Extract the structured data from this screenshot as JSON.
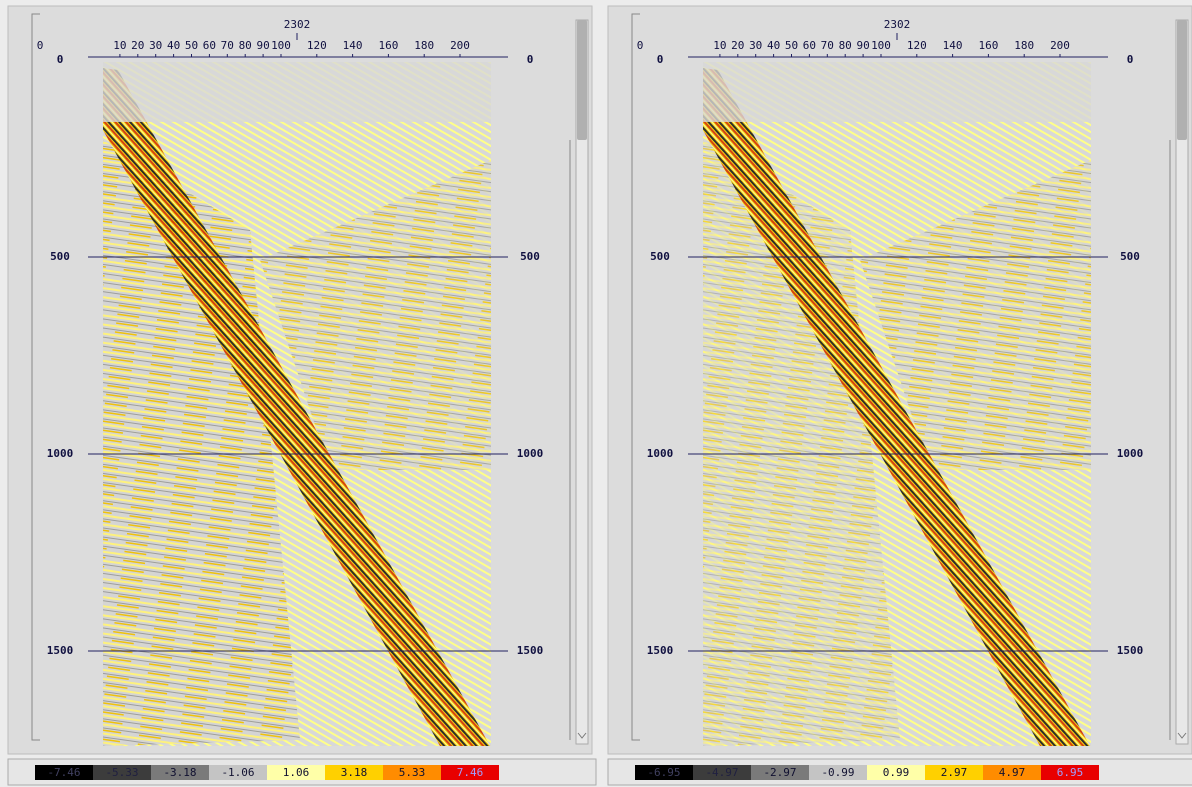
{
  "panels": [
    {
      "title": "2302",
      "x_ticks": [
        "0",
        "10",
        "20",
        "30",
        "40",
        "50",
        "60",
        "70",
        "80",
        "90",
        "100",
        "120",
        "140",
        "160",
        "180",
        "200"
      ],
      "y_ticks_left": [
        "0",
        "500",
        "1000",
        "1500"
      ],
      "y_ticks_right": [
        "0",
        "500",
        "1000",
        "1500"
      ],
      "colorbar": [
        "-7.46",
        "-5.33",
        "-3.18",
        "-1.06",
        "1.06",
        "3.18",
        "5.33",
        "7.46"
      ]
    },
    {
      "title": "2302",
      "x_ticks": [
        "0",
        "10",
        "20",
        "30",
        "40",
        "50",
        "60",
        "70",
        "80",
        "90",
        "100",
        "120",
        "140",
        "160",
        "180",
        "200"
      ],
      "y_ticks_left": [
        "0",
        "500",
        "1000",
        "1500"
      ],
      "y_ticks_right": [
        "0",
        "500",
        "1000",
        "1500"
      ],
      "colorbar": [
        "-6.95",
        "-4.97",
        "-2.97",
        "-0.99",
        "0.99",
        "2.97",
        "4.97",
        "6.95"
      ]
    }
  ]
}
